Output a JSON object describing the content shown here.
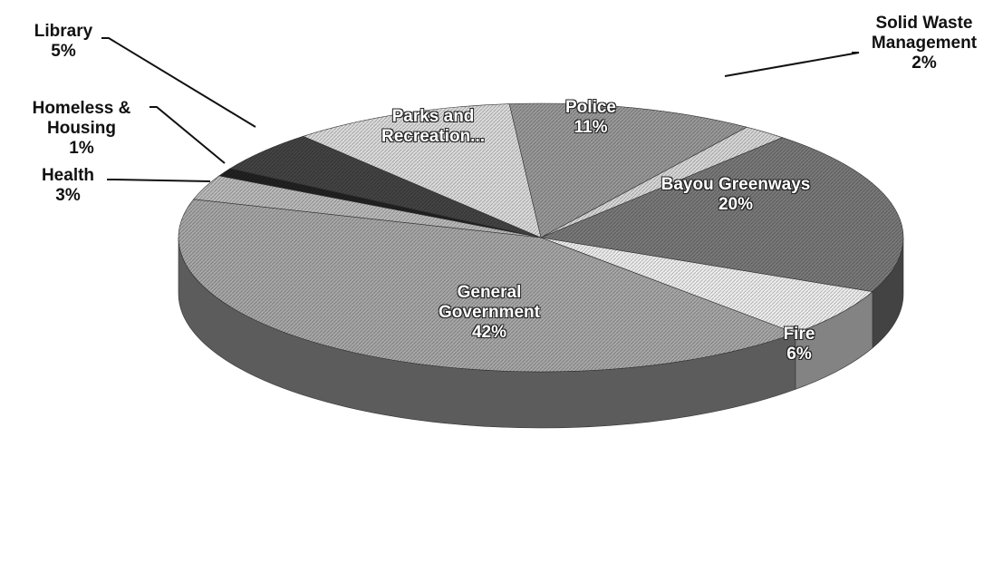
{
  "chart_data": {
    "type": "pie3d",
    "categories": [
      "Police",
      "Solid Waste Management",
      "Bayou Greenways",
      "Fire",
      "General Government",
      "Health",
      "Homeless & Housing",
      "Library",
      "Parks and Recreation..."
    ],
    "values": [
      11,
      2,
      20,
      6,
      42,
      3,
      1,
      5,
      10
    ],
    "value_labels": [
      "11%",
      "2%",
      "20%",
      "6%",
      "42%",
      "3%",
      "1%",
      "5%",
      null
    ],
    "colors": [
      "#9a9a9a",
      "#d8d8d8",
      "#7a7a7a",
      "#eeeeee",
      "#a8a8a8",
      "#bbbbbb",
      "#222222",
      "#444444",
      "#dcdcdc"
    ]
  }
}
